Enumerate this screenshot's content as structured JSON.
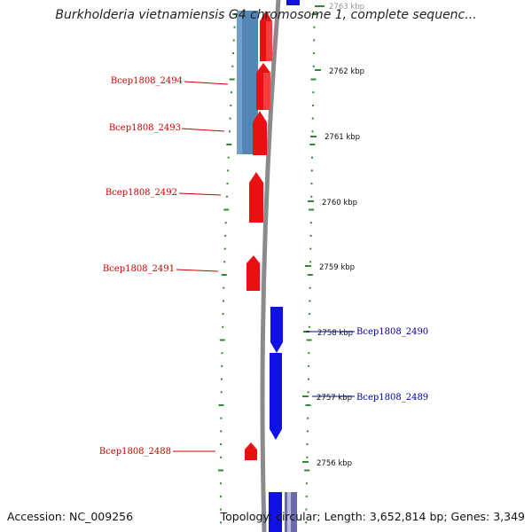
{
  "title": "Burkholderia vietnamiensis G4 chromosome 1, complete sequenc...",
  "footer": {
    "accession": "Accession: NC_009256",
    "summary": "Topology: circular; Length: 3,652,814 bp; Genes: 3,349"
  },
  "colors": {
    "backbone": "#8a8a8a",
    "tick": "#2e8b2e",
    "forward_gene": "#1010e8",
    "reverse_gene": "#e81010",
    "forward_label": "#000099",
    "reverse_label": "#cc0000",
    "cds_overlay": "#4a7fb0"
  },
  "scale": {
    "unit": "kbp",
    "labels": [
      {
        "value": 2763,
        "text": "2763 kbp"
      },
      {
        "value": 2762,
        "text": "2762 kbp"
      },
      {
        "value": 2761,
        "text": "2761 kbp"
      },
      {
        "value": 2760,
        "text": "2760 kbp"
      },
      {
        "value": 2759,
        "text": "2759 kbp"
      },
      {
        "value": 2758,
        "text": "2758 kbp"
      },
      {
        "value": 2757,
        "text": "2757 kbp"
      },
      {
        "value": 2756,
        "text": "2756 kbp"
      }
    ]
  },
  "genes": [
    {
      "name": "Bcep1808_2494",
      "strand": "reverse",
      "label": "Bcep1808_2494"
    },
    {
      "name": "Bcep1808_2493",
      "strand": "reverse",
      "label": "Bcep1808_2493"
    },
    {
      "name": "Bcep1808_2492",
      "strand": "reverse",
      "label": "Bcep1808_2492"
    },
    {
      "name": "Bcep1808_2491",
      "strand": "reverse",
      "label": "Bcep1808_2491"
    },
    {
      "name": "Bcep1808_2490",
      "strand": "forward",
      "label": "Bcep1808_2490"
    },
    {
      "name": "Bcep1808_2489",
      "strand": "forward",
      "label": "Bcep1808_2489"
    },
    {
      "name": "Bcep1808_2488",
      "strand": "reverse",
      "label": "Bcep1808_2488"
    }
  ]
}
